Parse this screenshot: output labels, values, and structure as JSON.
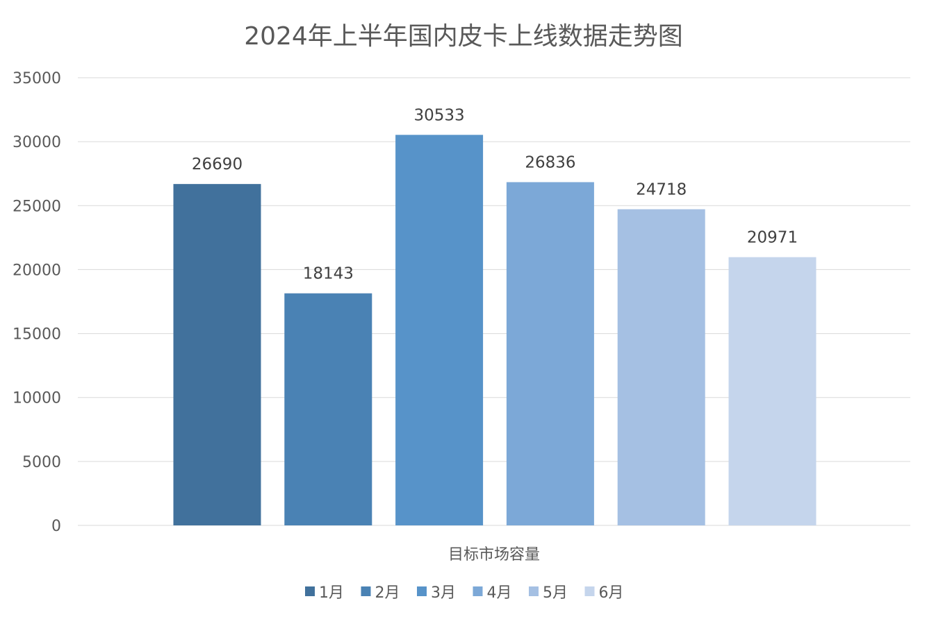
{
  "chart_data": {
    "type": "bar",
    "title": "2024年上半年国内皮卡上线数据走势图",
    "xlabel": "目标市场容量",
    "ylabel": "",
    "categories": [
      "目标市场容量"
    ],
    "series": [
      {
        "name": "1月",
        "values": [
          26690
        ],
        "color": "#41719c"
      },
      {
        "name": "2月",
        "values": [
          18143
        ],
        "color": "#4a82b4"
      },
      {
        "name": "3月",
        "values": [
          30533
        ],
        "color": "#5793c9"
      },
      {
        "name": "4月",
        "values": [
          26836
        ],
        "color": "#7ca8d7"
      },
      {
        "name": "5月",
        "values": [
          24718
        ],
        "color": "#a5c0e3"
      },
      {
        "name": "6月",
        "values": [
          20971
        ],
        "color": "#c5d5ec"
      }
    ],
    "ylim": [
      0,
      35000
    ],
    "yticks": [
      0,
      5000,
      10000,
      15000,
      20000,
      25000,
      30000,
      35000
    ],
    "grid": true,
    "legend_position": "bottom",
    "data_labels": true
  }
}
